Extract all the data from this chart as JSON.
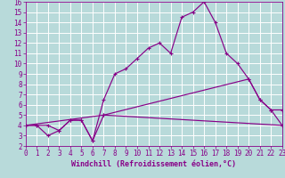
{
  "background_color": "#b8dada",
  "grid_color": "#ffffff",
  "line_color": "#880088",
  "xlabel": "Windchill (Refroidissement éolien,°C)",
  "xlim": [
    0,
    23
  ],
  "ylim": [
    2,
    16
  ],
  "xticks": [
    0,
    1,
    2,
    3,
    4,
    5,
    6,
    7,
    8,
    9,
    10,
    11,
    12,
    13,
    14,
    15,
    16,
    17,
    18,
    19,
    20,
    21,
    22,
    23
  ],
  "yticks": [
    2,
    3,
    4,
    5,
    6,
    7,
    8,
    9,
    10,
    11,
    12,
    13,
    14,
    15,
    16
  ],
  "line1_x": [
    0,
    1,
    2,
    3,
    4,
    5,
    6,
    7,
    8,
    9,
    10,
    11,
    12,
    13,
    14,
    15,
    16,
    17,
    18,
    19,
    20,
    21,
    22,
    23
  ],
  "line1_y": [
    4,
    4,
    4,
    3.5,
    4.5,
    4.5,
    2.5,
    6.5,
    9,
    9.5,
    10.5,
    11.5,
    12,
    11,
    14.5,
    15,
    16,
    14,
    11,
    10,
    8.5,
    6.5,
    5.5,
    5.5
  ],
  "line2_x": [
    0,
    1,
    2,
    3,
    4,
    5,
    6,
    7,
    23
  ],
  "line2_y": [
    4,
    4,
    3,
    3.5,
    4.5,
    4.5,
    2.5,
    5,
    4
  ],
  "line3_x": [
    0,
    7,
    20,
    21,
    22,
    23
  ],
  "line3_y": [
    4,
    5,
    8.5,
    6.5,
    5.5,
    4
  ],
  "tick_fontsize": 5.5,
  "xlabel_fontsize": 6.0
}
